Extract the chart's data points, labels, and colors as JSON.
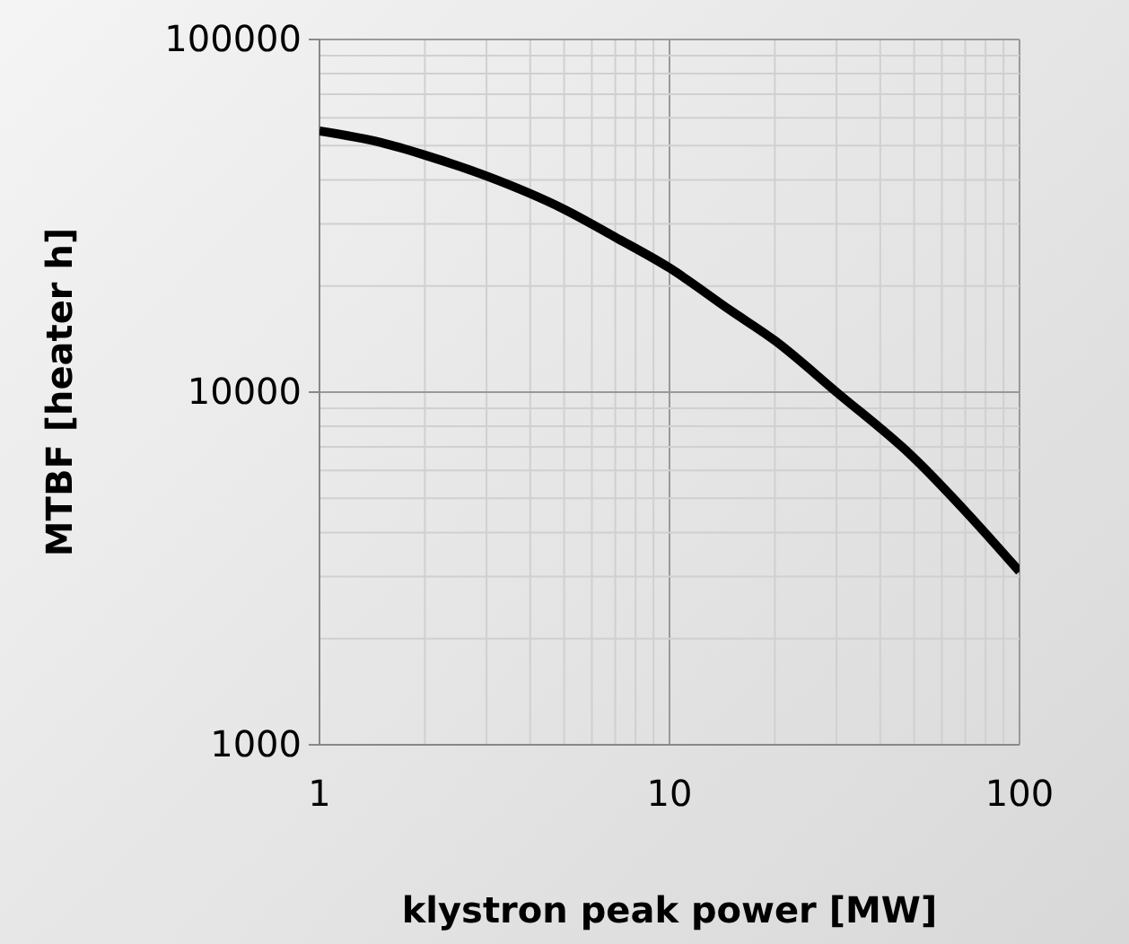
{
  "chart_data": {
    "type": "line",
    "xlabel": "klystron peak power [MW]",
    "ylabel": "MTBF [heater h]",
    "log": "xy",
    "grid": true,
    "line_style": "solid",
    "marker": "none",
    "xlim": [
      1,
      100
    ],
    "xticks": [
      1,
      10,
      100
    ],
    "ylim": [
      1000,
      100000
    ],
    "yticks": [
      1000,
      10000,
      100000
    ],
    "series": [
      {
        "color": "#000000",
        "x": [
          1,
          1.5,
          2,
          3,
          5,
          7,
          10,
          15,
          20,
          30,
          50,
          70,
          100
        ],
        "values": [
          55000,
          51000,
          47000,
          41000,
          33000,
          27500,
          22500,
          17000,
          14000,
          10000,
          6500,
          4600,
          3100
        ]
      }
    ]
  }
}
